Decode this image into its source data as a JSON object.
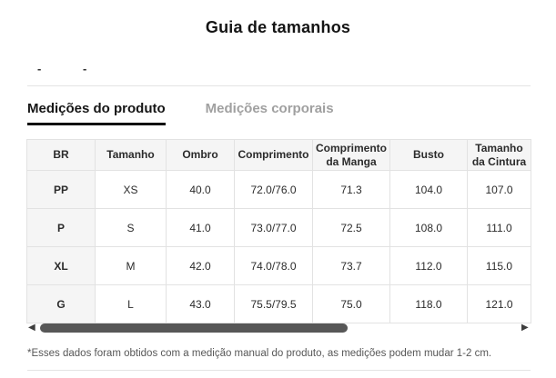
{
  "header": {
    "title": "Guia de tamanhos"
  },
  "unit_dashes": [
    "-",
    "-"
  ],
  "tabs": [
    {
      "label": "Medições do produto",
      "active": true
    },
    {
      "label": "Medições corporais",
      "active": false
    }
  ],
  "table": {
    "columns": [
      "BR",
      "Tamanho",
      "Ombro",
      "Comprimento",
      "Comprimento da Manga",
      "Busto",
      "Tamanho da Cintura"
    ],
    "rows": [
      [
        "PP",
        "XS",
        "40.0",
        "72.0/76.0",
        "71.3",
        "104.0",
        "107.0"
      ],
      [
        "P",
        "S",
        "41.0",
        "73.0/77.0",
        "72.5",
        "108.0",
        "111.0"
      ],
      [
        "XL",
        "M",
        "42.0",
        "74.0/78.0",
        "73.7",
        "112.0",
        "115.0"
      ],
      [
        "G",
        "L",
        "43.0",
        "75.5/79.5",
        "75.0",
        "118.0",
        "121.0"
      ]
    ]
  },
  "scrollbar": {
    "left_arrow": "◀",
    "right_arrow": "▶"
  },
  "footnote": "*Esses dados foram obtidos com a medição manual do produto, as medições podem mudar 1-2 cm.",
  "colors": {
    "active_tab": "#161616",
    "inactive_tab": "#a0a0a0",
    "table_border": "#e2e2e2",
    "header_bg": "#f5f5f5",
    "scroll_thumb": "#575757",
    "divider": "#e4e4e4"
  }
}
